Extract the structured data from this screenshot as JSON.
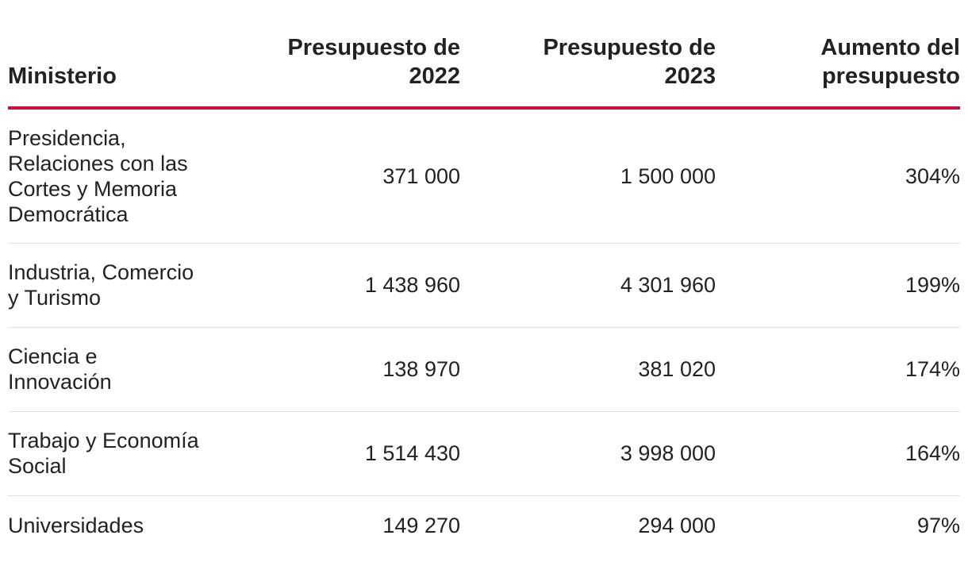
{
  "chart_data": {
    "type": "table",
    "columns": [
      "Ministerio",
      "Presupuesto de 2022",
      "Presupuesto de 2023",
      "Aumento del presupuesto"
    ],
    "rows": [
      {
        "ministerio": "Presidencia, Relaciones con las Cortes y Memoria Democrática",
        "p2022": "371 000",
        "p2023": "1 500 000",
        "aumento": "304%"
      },
      {
        "ministerio": "Industria, Comercio y Turismo",
        "p2022": "1 438 960",
        "p2023": "4 301 960",
        "aumento": "199%"
      },
      {
        "ministerio": "Ciencia e Innovación",
        "p2022": "138 970",
        "p2023": "381 020",
        "aumento": "174%"
      },
      {
        "ministerio": "Trabajo y Economía Social",
        "p2022": "1 514 430",
        "p2023": "3 998 000",
        "aumento": "164%"
      },
      {
        "ministerio": "Universidades",
        "p2022": "149 270",
        "p2023": "294 000",
        "aumento": "97%"
      }
    ],
    "values_2022": [
      371000,
      1438960,
      138970,
      1514430,
      149270
    ],
    "values_2023": [
      1500000,
      4301960,
      381020,
      3998000,
      294000
    ],
    "increase_pct": [
      304,
      199,
      174,
      164,
      97
    ]
  },
  "colors": {
    "header_rule": "#c8103e",
    "row_divider": "#e3e3e3",
    "text": "#222222"
  }
}
